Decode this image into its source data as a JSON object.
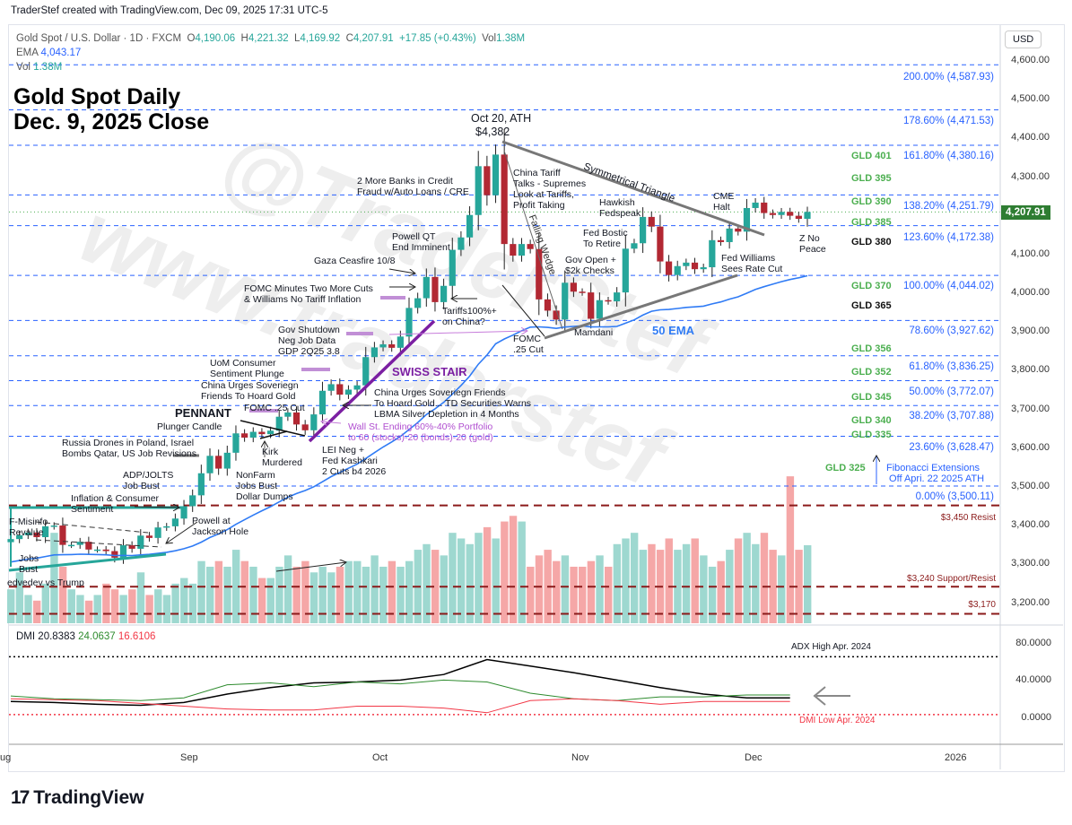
{
  "credit": "TraderStef created with TradingView.com, Dec 09, 2025 17:31 UTC-5",
  "legend": {
    "symbol": "Gold Spot / U.S. Dollar · 1D · FXCM",
    "o_label": "O",
    "o": "4,190.06",
    "h_label": "H",
    "h": "4,221.32",
    "l_label": "L",
    "l": "4,169.92",
    "c_label": "C",
    "c": "4,207.91",
    "change": "+17.85 (+0.43%)",
    "vol_label": "Vol",
    "vol": "1.38M",
    "ema_label": "EMA",
    "ema": "4,043.17",
    "vol2_label": "Vol",
    "vol2": "1.38M"
  },
  "title": {
    "line1": "Gold Spot Daily",
    "line2": "Dec. 9, 2025 Close"
  },
  "watermark": [
    "@TraderStef",
    "www.traderstef"
  ],
  "currency_button": "USD",
  "current_price_label": "4,207.91",
  "price_axis": [
    "4,600.00",
    "4,500.00",
    "4,400.00",
    "4,300.00",
    "4,100.00",
    "4,000.00",
    "3,900.00",
    "3,800.00",
    "3,700.00",
    "3,600.00",
    "3,500.00",
    "3,400.00",
    "3,300.00",
    "3,200.00"
  ],
  "time_axis": [
    "ug",
    "Sep",
    "Oct",
    "Nov",
    "Dec",
    "2026"
  ],
  "fib_labels": [
    "200.00% (4,587.93)",
    "178.60% (4,471.53)",
    "161.80% (4,380.16)",
    "138.20% (4,251.79)",
    "123.60% (4,172.38)",
    "100.00% (4,044.02)",
    "78.60% (3,927.62)",
    "61.80% (3,836.25)",
    "50.00% (3,772.07)",
    "38.20% (3,707.88)",
    "23.60% (3,628.47)",
    "0.00% (3,500.11)"
  ],
  "gld_labels": [
    "GLD 401",
    "GLD 395",
    "GLD 390",
    "GLD 385",
    "GLD 380",
    "GLD 370",
    "GLD 365",
    "GLD 356",
    "GLD 352",
    "GLD 345",
    "GLD 340",
    "GLD 335",
    "GLD 325"
  ],
  "resist_labels": [
    "$3,450 Resist",
    "$3,240 Support/Resist",
    "$3,170"
  ],
  "fib_note": "Fibonacci Extensions\n Off Apri. 22 2025 ATH",
  "annotations": [
    "Oct 20, ATH",
    "$4,382",
    "China Tariff\nTalks - Supremes\nLook at Tariffs,\nProfit Taking",
    "2 More Banks in Credit\nFraud w/Auto Loans / CRE",
    "Symmetrical Triangle",
    "Falling Wedge",
    "Hawkish\nFedspeak",
    "CME\nHalt",
    "Fed Bostic\nTo Retire",
    "Z No\nPeace",
    "Powell QT\nEnd Imminent",
    "Gaza Ceasfire 10/8",
    "Gov Open +\n$2k Checks",
    "Fed Williams\nSees Rate Cut",
    "FOMC Minutes Two More Cuts\n& Williams No Tariff Inflation",
    "Tariffs100%+\non China?",
    "Gov Shutdown\nNeg Job Data\nGDP 2Q25 3.8",
    "Mamdani",
    "FOMC\n.25 Cut",
    "50 EMA",
    "UoM Consumer\nSentiment Plunge",
    "SWISS STAIR",
    "China Urges Soveriegn\nFriends To Hoard Gold",
    "China Urges Soveriegn Friends\nTo Hoard Gold... TD Securities Warns\nLBMA Silver Depletion in 4 Months",
    "FOMC .25 Cut",
    "PENNANT",
    "Plunger Candle",
    "Wall St. Ending 60%-40% Portfolio\nto 60 (stocks)-20 (bonds)-20 (gold)",
    "Russia Drones in Poland, Israel\nBombs Qatar, US Job Revisions",
    "LEI Neg +\nFed Kashkari\n2 Cuts b4 2026",
    "Kirk\nMurdered",
    "NonFarm\nJobs Bust\nDollar Dumps",
    "ADP/JOLTS\nJob Bust",
    "Inflation & Consumer\nSentiment",
    "Powell at\nJackson Hole",
    "F-Misinfo\nRevalue",
    "Jobs\nBust",
    "edvedev vs Trump"
  ],
  "dmi": {
    "label": "DMI",
    "adx": "20.8383",
    "plus_di": "24.0637",
    "minus_di": "16.6106",
    "axis": [
      "80.0000",
      "40.0000",
      "0.0000"
    ],
    "adx_high_note": "ADX High Apr. 2024",
    "dmi_low_note": "DMI Low Apr. 2024"
  },
  "colors": {
    "up": "#26a69a",
    "down": "#b22833",
    "ema": "#2f7bf5",
    "fib": "#2962ff",
    "gld": "#4caf50",
    "resist": "#8b1a1a",
    "swiss_stair": "#7b1fa2",
    "adx": "#000000",
    "plus_di": "#2e8b2e",
    "minus_di": "#f23645"
  },
  "chart_data": {
    "type": "candlestick",
    "symbol": "Gold Spot / U.S. Dollar",
    "interval": "1D",
    "ylim": [
      3150,
      4650
    ],
    "months": [
      "Aug",
      "Sep",
      "Oct",
      "Nov",
      "Dec"
    ],
    "days_per_month": [
      21,
      22,
      23,
      20,
      7
    ],
    "close": [
      3363,
      3373,
      3380,
      3368,
      3396,
      3398,
      3348,
      3348,
      3356,
      3336,
      3336,
      3332,
      3315,
      3347,
      3338,
      3372,
      3366,
      3393,
      3396,
      3416,
      3448,
      3476,
      3533,
      3578,
      3545,
      3586,
      3636,
      3625,
      3640,
      3634,
      3643,
      3679,
      3690,
      3659,
      3644,
      3685,
      3746,
      3763,
      3736,
      3749,
      3760,
      3833,
      3858,
      3866,
      3857,
      3886,
      3960,
      3985,
      4040,
      3975,
      4017,
      4110,
      4142,
      4200,
      4326,
      4251,
      4356,
      4125,
      4095,
      4125,
      4112,
      3982,
      3953,
      3930,
      4025,
      4002,
      4000,
      3932,
      3980,
      3977,
      4000,
      4113,
      4127,
      4195,
      4170,
      4080,
      4045,
      4068,
      4077,
      4060,
      4065,
      4135,
      4130,
      4165,
      4157,
      4218,
      4232,
      4205,
      4200,
      4208,
      4198,
      4190,
      4207.91
    ],
    "last_ohlc": {
      "open": 4190.06,
      "high": 4221.32,
      "low": 4169.92,
      "close": 4207.91
    },
    "ath": 4382,
    "volume_m": [
      0.6,
      0.9,
      0.5,
      0.4,
      0.7,
      1.6,
      1.0,
      0.6,
      0.5,
      0.4,
      0.5,
      0.7,
      0.6,
      0.5,
      0.6,
      0.9,
      0.5,
      0.6,
      0.5,
      0.7,
      0.8,
      0.7,
      1.1,
      1.0,
      1.1,
      1.0,
      1.3,
      1.1,
      1.0,
      0.8,
      0.8,
      1.0,
      1.2,
      1.0,
      1.1,
      0.9,
      1.0,
      0.9,
      1.0,
      1.1,
      1.1,
      1.0,
      1.2,
      1.0,
      1.1,
      1.0,
      1.1,
      1.3,
      1.4,
      1.3,
      1.2,
      1.6,
      1.5,
      1.4,
      1.6,
      1.7,
      1.5,
      1.8,
      1.9,
      1.8,
      1.0,
      1.2,
      1.3,
      1.1,
      1.2,
      1.0,
      1.0,
      1.1,
      1.2,
      1.0,
      1.4,
      1.5,
      1.6,
      1.3,
      1.4,
      1.3,
      1.5,
      1.3,
      1.4,
      1.5,
      1.2,
      1.0,
      1.1,
      1.3,
      1.5,
      1.6,
      1.4,
      1.6,
      1.3,
      1.2,
      2.6,
      1.3,
      1.38
    ],
    "ema_period": 50,
    "ema_last": 4043.17,
    "fib_levels": [
      4587.93,
      4471.53,
      4380.16,
      4251.79,
      4172.38,
      4044.02,
      3927.62,
      3836.25,
      3772.07,
      3707.88,
      3628.47,
      3500.11
    ],
    "resist_levels": [
      3450,
      3240,
      3170
    ],
    "dmi_sample_every_days": 5,
    "adx": [
      17,
      16,
      14,
      13,
      16,
      25,
      32,
      37,
      38,
      40,
      46,
      62,
      55,
      48,
      40,
      32,
      25,
      21,
      21
    ],
    "plus_di": [
      23,
      20,
      19,
      18,
      21,
      35,
      37,
      33,
      38,
      36,
      40,
      38,
      26,
      20,
      18,
      22,
      22,
      24,
      24
    ],
    "minus_di": [
      20,
      19,
      18,
      15,
      12,
      9,
      8,
      8,
      12,
      12,
      10,
      5,
      18,
      20,
      18,
      14,
      17,
      17,
      17
    ],
    "adx_high_level": 65,
    "dmi_low_level": 3,
    "dmi_ylim": [
      -20,
      100
    ]
  }
}
